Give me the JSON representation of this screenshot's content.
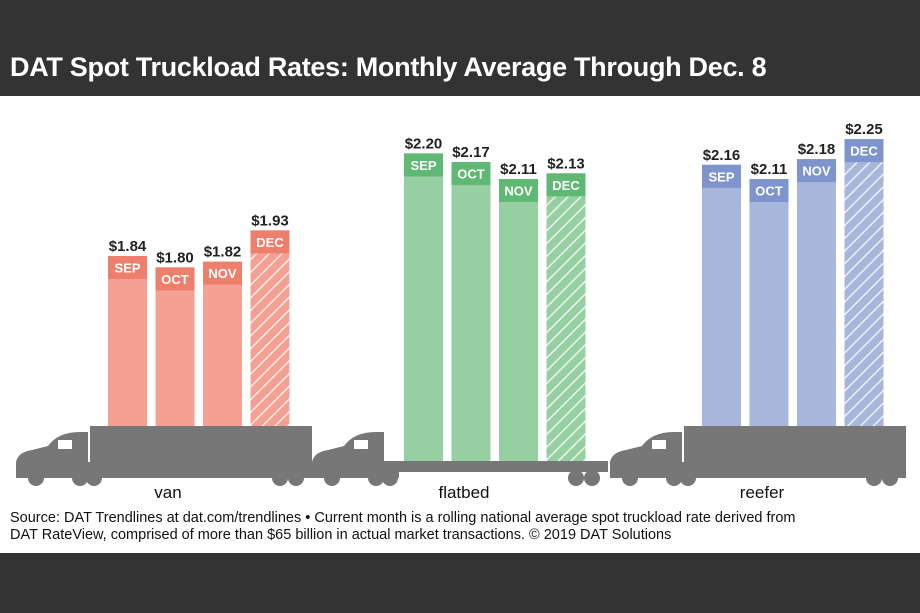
{
  "title": "DAT Spot Truckload Rates: Monthly Average Through Dec. 8",
  "footer": {
    "line1": "Source: DAT Trendlines at dat.com/trendlines • Current month is a rolling national average spot truckload rate derived from",
    "line2": "DAT RateView, comprised of more than $65 billion in actual market transactions. © 2019 DAT Solutions"
  },
  "chart_data": {
    "type": "bar",
    "title": "DAT Spot Truckload Rates: Monthly Average Through Dec. 8",
    "categories": [
      "SEP",
      "OCT",
      "NOV",
      "DEC"
    ],
    "value_format": "$",
    "current_month_hatched": "DEC",
    "groups": [
      {
        "name": "van",
        "values": [
          1.84,
          1.8,
          1.82,
          1.93
        ],
        "labels": [
          "$1.84",
          "$1.80",
          "$1.82",
          "$1.93"
        ],
        "color": "#f4a093",
        "band_color": "#ee7f6d",
        "trailer": "van"
      },
      {
        "name": "flatbed",
        "values": [
          2.2,
          2.17,
          2.11,
          2.13
        ],
        "labels": [
          "$2.20",
          "$2.17",
          "$2.11",
          "$2.13"
        ],
        "color": "#96d0a2",
        "band_color": "#5fb873",
        "trailer": "flatbed"
      },
      {
        "name": "reefer",
        "values": [
          2.16,
          2.11,
          2.18,
          2.25
        ],
        "labels": [
          "$2.16",
          "$2.11",
          "$2.18",
          "$2.25"
        ],
        "color": "#a7b6da",
        "band_color": "#7f94cd",
        "trailer": "reefer"
      }
    ],
    "truck_color": "#777777"
  }
}
